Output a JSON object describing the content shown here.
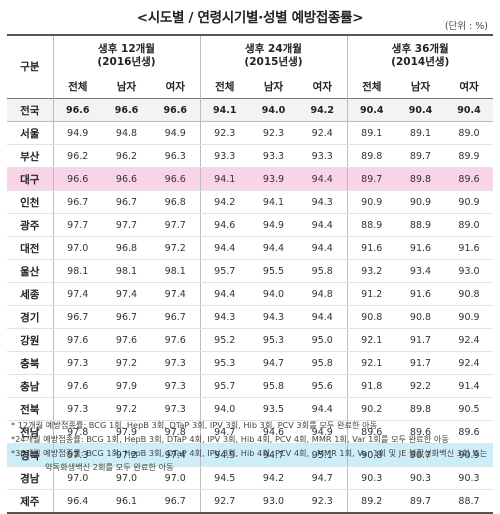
{
  "title": "<시도별 / 연령시기별·성별 예방접종률>",
  "unit": "(단위 : %)",
  "header": {
    "region_label": "구분",
    "groups": [
      {
        "line1": "생후 12개월",
        "line2": "(2016년생)"
      },
      {
        "line1": "생후 24개월",
        "line2": "(2015년생)"
      },
      {
        "line1": "생후 36개월",
        "line2": "(2014년생)"
      }
    ],
    "sub": [
      "전체",
      "남자",
      "여자"
    ]
  },
  "rows": [
    {
      "region": "전국",
      "v": [
        "96.6",
        "96.6",
        "96.6",
        "94.1",
        "94.0",
        "94.2",
        "90.4",
        "90.4",
        "90.4"
      ]
    },
    {
      "region": "서울",
      "v": [
        "94.9",
        "94.8",
        "94.9",
        "92.3",
        "92.3",
        "92.4",
        "89.1",
        "89.1",
        "89.0"
      ]
    },
    {
      "region": "부산",
      "v": [
        "96.2",
        "96.2",
        "96.3",
        "93.3",
        "93.3",
        "93.3",
        "89.8",
        "89.7",
        "89.9"
      ]
    },
    {
      "region": "대구",
      "v": [
        "96.6",
        "96.6",
        "96.6",
        "94.1",
        "93.9",
        "94.4",
        "89.7",
        "89.8",
        "89.6"
      ]
    },
    {
      "region": "인천",
      "v": [
        "96.7",
        "96.7",
        "96.8",
        "94.2",
        "94.1",
        "94.3",
        "90.9",
        "90.9",
        "90.9"
      ]
    },
    {
      "region": "광주",
      "v": [
        "97.7",
        "97.7",
        "97.7",
        "94.6",
        "94.9",
        "94.4",
        "88.9",
        "88.9",
        "89.0"
      ]
    },
    {
      "region": "대전",
      "v": [
        "97.0",
        "96.8",
        "97.2",
        "94.4",
        "94.4",
        "94.4",
        "91.6",
        "91.6",
        "91.6"
      ]
    },
    {
      "region": "울산",
      "v": [
        "98.1",
        "98.1",
        "98.1",
        "95.7",
        "95.5",
        "95.8",
        "93.2",
        "93.4",
        "93.0"
      ]
    },
    {
      "region": "세종",
      "v": [
        "97.4",
        "97.4",
        "97.4",
        "94.4",
        "94.0",
        "94.8",
        "91.2",
        "91.6",
        "90.8"
      ]
    },
    {
      "region": "경기",
      "v": [
        "96.7",
        "96.7",
        "96.7",
        "94.3",
        "94.3",
        "94.4",
        "90.8",
        "90.8",
        "90.9"
      ]
    },
    {
      "region": "강원",
      "v": [
        "97.6",
        "97.6",
        "97.6",
        "95.2",
        "95.3",
        "95.0",
        "92.1",
        "91.7",
        "92.4"
      ]
    },
    {
      "region": "충북",
      "v": [
        "97.3",
        "97.2",
        "97.3",
        "95.3",
        "94.7",
        "95.8",
        "92.1",
        "91.7",
        "92.4"
      ]
    },
    {
      "region": "충남",
      "v": [
        "97.6",
        "97.9",
        "97.3",
        "95.7",
        "95.8",
        "95.6",
        "91.8",
        "92.2",
        "91.4"
      ]
    },
    {
      "region": "전북",
      "v": [
        "97.3",
        "97.2",
        "97.3",
        "94.0",
        "93.5",
        "94.4",
        "90.2",
        "89.8",
        "90.5"
      ]
    },
    {
      "region": "전남",
      "v": [
        "97.8",
        "97.9",
        "97.8",
        "94.7",
        "94.6",
        "94.9",
        "89.6",
        "89.6",
        "89.6"
      ]
    },
    {
      "region": "경북",
      "v": [
        "97.3",
        "97.2",
        "97.4",
        "94.9",
        "94.7",
        "95.1",
        "90.8",
        "90.7",
        "90.9"
      ]
    },
    {
      "region": "경남",
      "v": [
        "97.0",
        "97.0",
        "97.0",
        "94.5",
        "94.2",
        "94.7",
        "90.3",
        "90.3",
        "90.3"
      ]
    },
    {
      "region": "제주",
      "v": [
        "96.4",
        "96.1",
        "96.7",
        "92.7",
        "93.0",
        "92.3",
        "89.2",
        "89.7",
        "88.7"
      ]
    }
  ],
  "highlight_colors": {
    "total": "#f3f3f3",
    "pink": "#f8d4e6",
    "blue": "#cdeef8"
  },
  "notes": [
    "* 12개월 예방접종률: BCG 1회, HepB 3회, DTaP 3회, IPV 3회, Hib 3회, PCV 3회를 모두 완료한 아동",
    "*24개월 예방접종률: BCG 1회, HepB 3회, DTaP 4회, IPV 3회, Hib 4회, PCV 4회, MMR 1회, Var 1회를 모두 완료한 아동",
    "*36개월 예방접종률: BCG 1회, HepB 3회, DTaP 4회, IPV 3회, Hib 4회, PCV 4회, , MMR 1회, Var 1회 및 JE 불활성화백신 3회 또는",
    "약독화생백신 2회를 모두 완료한 아동"
  ]
}
